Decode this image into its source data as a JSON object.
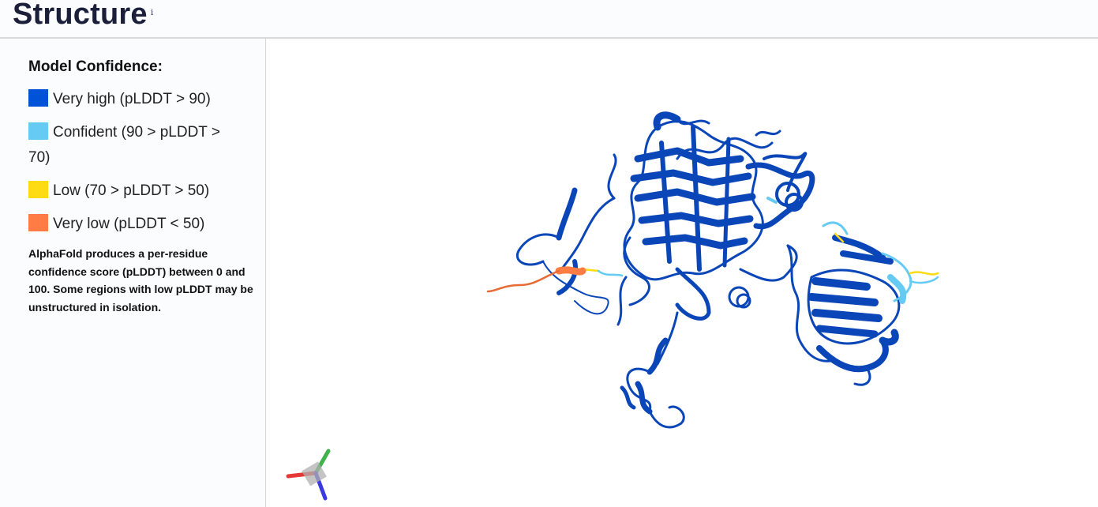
{
  "header": {
    "title": "Structure",
    "info_marker": "i"
  },
  "legend": {
    "title": "Model Confidence:",
    "items": [
      {
        "label": "Very high (pLDDT > 90)",
        "color": "#0053d6"
      },
      {
        "label": "Confident (90 > pLDDT > 70)",
        "color": "#65cbf3"
      },
      {
        "label": "Low (70 > pLDDT > 50)",
        "color": "#ffdb13"
      },
      {
        "label": "Very low (pLDDT < 50)",
        "color": "#ff7d45"
      }
    ],
    "note": "AlphaFold produces a per-residue confidence score (pLDDT) between 0 and 100. Some regions with low pLDDT may be unstructured in isolation."
  },
  "viewer": {
    "structure_color": "#0a46b8",
    "axis_colors": {
      "x": "#e53935",
      "y": "#3fb24b",
      "z": "#3a3ae0"
    }
  }
}
